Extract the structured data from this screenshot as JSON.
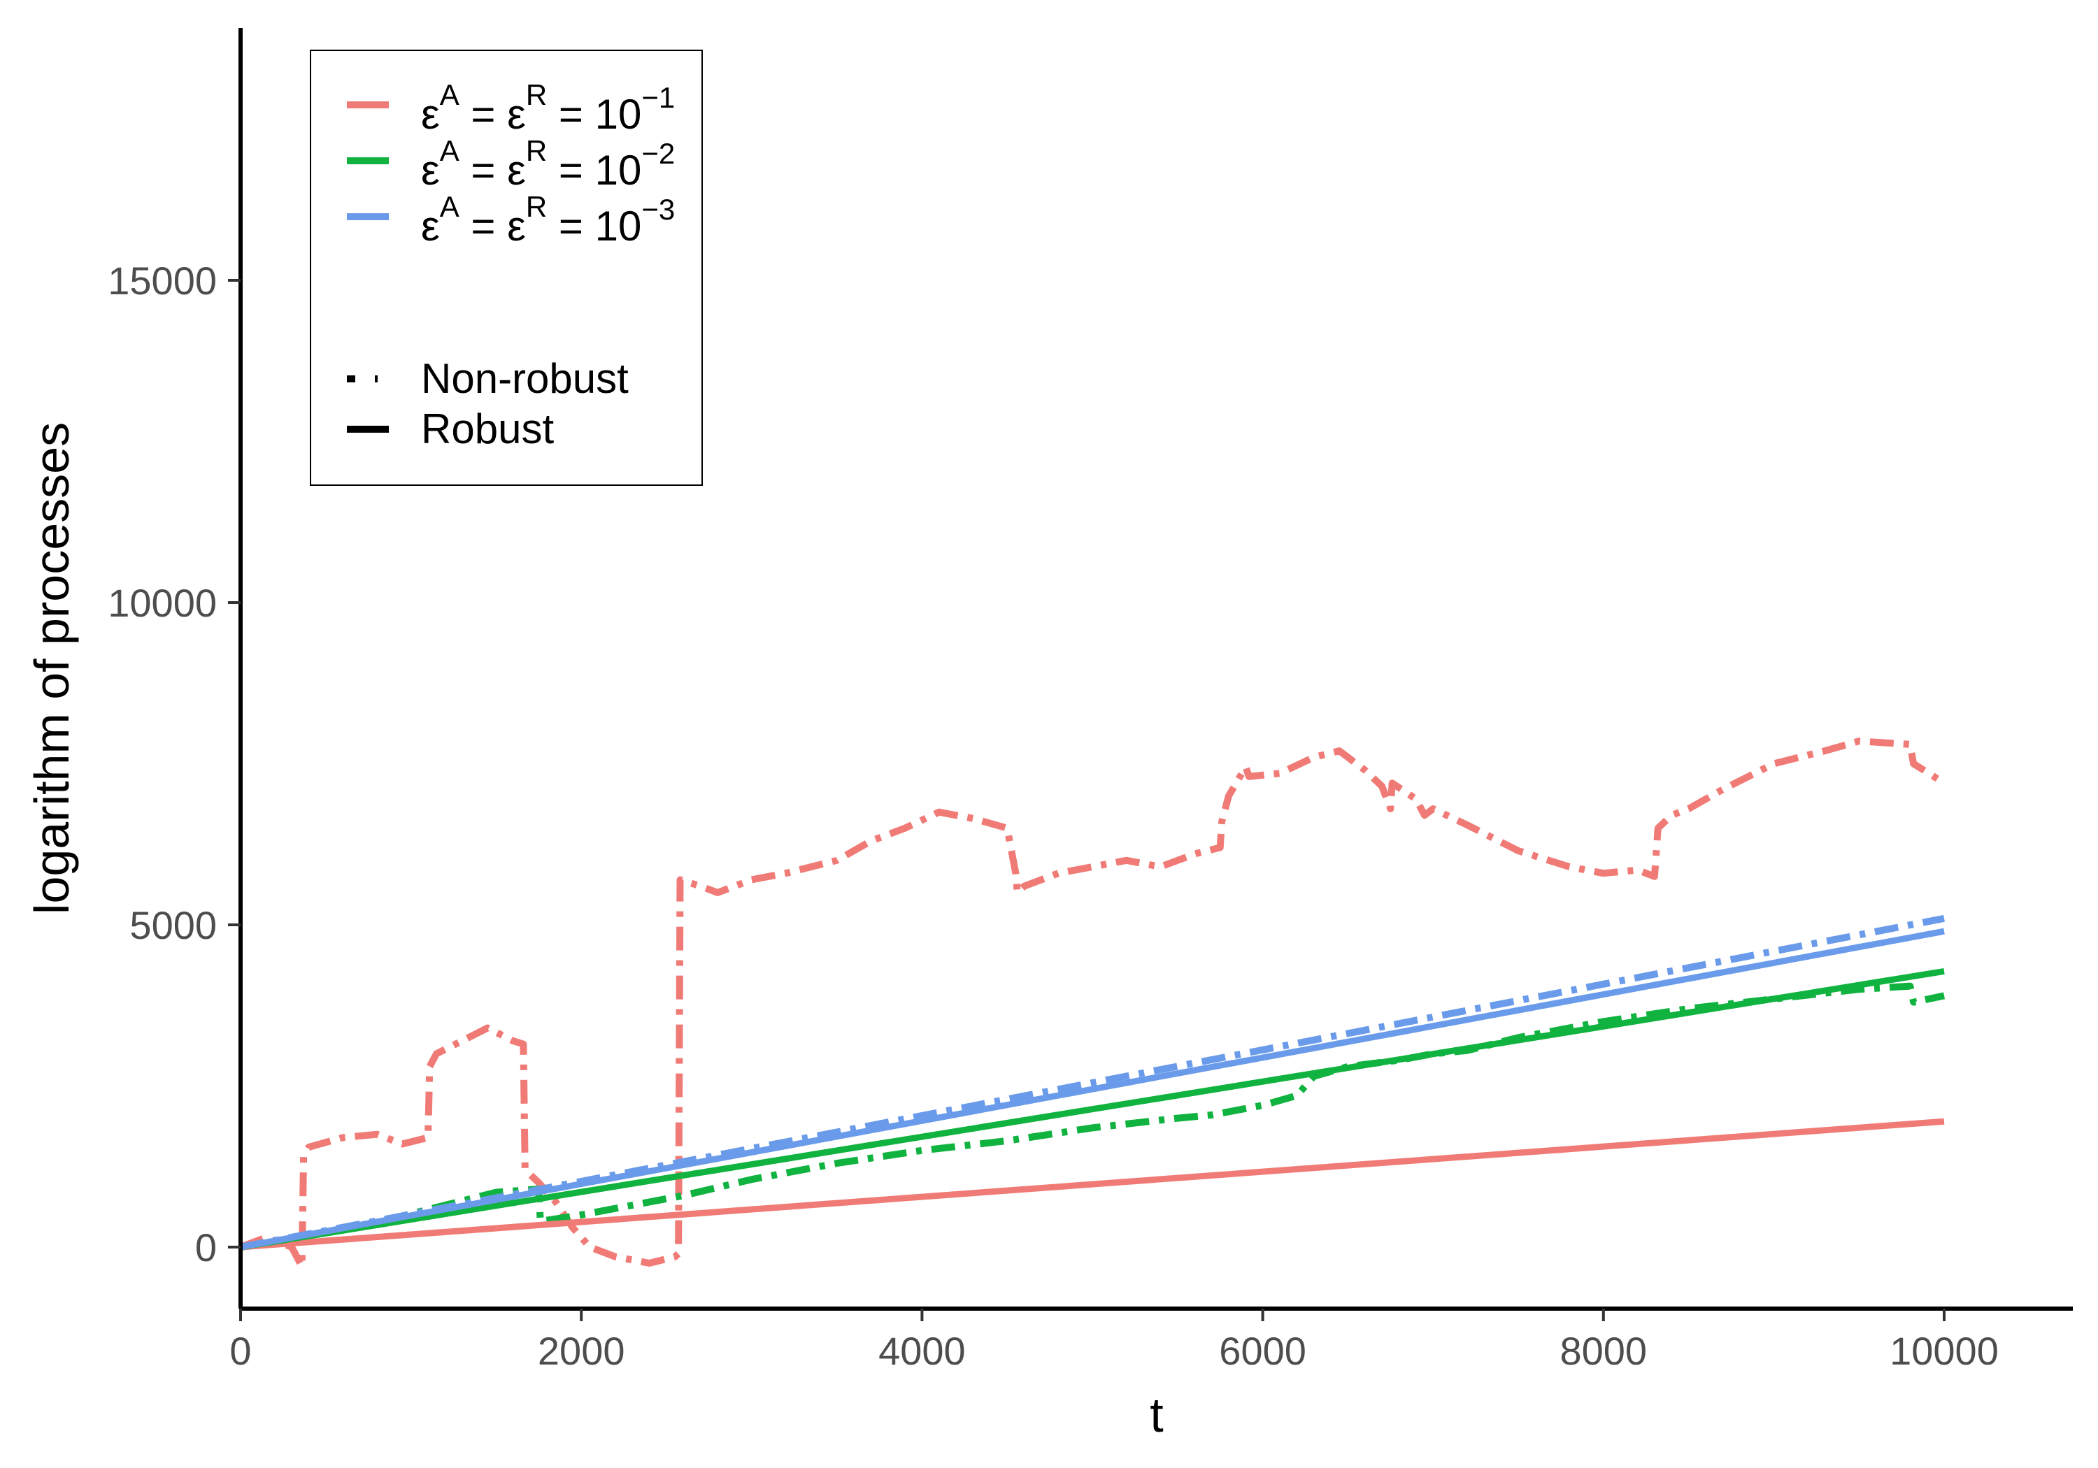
{
  "chart_data": {
    "type": "line",
    "title": "",
    "xlabel": "t",
    "ylabel": "logarithm of processes",
    "xlim": [
      0,
      10800
    ],
    "ylim": [
      -1000,
      19000
    ],
    "xticks": [
      0,
      2000,
      4000,
      6000,
      8000,
      10000
    ],
    "xtick_labels": [
      "0",
      "2000",
      "4000",
      "6000",
      "8000",
      "10000"
    ],
    "yticks": [
      0,
      5000,
      10000,
      15000
    ],
    "ytick_labels": [
      "0",
      "5000",
      "10000",
      "15000"
    ],
    "grid": false,
    "legend_position": "top-left",
    "legend": {
      "colour_entries": [
        {
          "base": "ε",
          "sup1": "A",
          "mid": " = ε",
          "sup2": "R",
          "tail": " = 10",
          "exp": "−1",
          "color": "#F07B76"
        },
        {
          "base": "ε",
          "sup1": "A",
          "mid": " = ε",
          "sup2": "R",
          "tail": " = 10",
          "exp": "−2",
          "color": "#10B33F"
        },
        {
          "base": "ε",
          "sup1": "A",
          "mid": " = ε",
          "sup2": "R",
          "tail": " = 10",
          "exp": "−3",
          "color": "#6A9BEB"
        }
      ],
      "linetype_entries": [
        {
          "label": "Non-robust",
          "linestyle": "dotdash"
        },
        {
          "label": "Robust",
          "linestyle": "solid"
        }
      ]
    },
    "series": [
      {
        "group": "ε=10^-1",
        "style": "Robust",
        "color": "#F07B76",
        "linestyle": "solid",
        "x": [
          0,
          10000
        ],
        "y": [
          0,
          1950
        ]
      },
      {
        "group": "ε=10^-2",
        "style": "Robust",
        "color": "#10B33F",
        "linestyle": "solid",
        "x": [
          0,
          10000
        ],
        "y": [
          0,
          4280
        ]
      },
      {
        "group": "ε=10^-3",
        "style": "Robust",
        "color": "#6A9BEB",
        "linestyle": "solid",
        "x": [
          0,
          10000
        ],
        "y": [
          0,
          4900
        ]
      },
      {
        "group": "ε=10^-1",
        "style": "Non-robust",
        "color": "#F07B76",
        "linestyle": "dotdash",
        "x": [
          0,
          150,
          300,
          360,
          370,
          400,
          600,
          800,
          950,
          1100,
          1110,
          1150,
          1300,
          1450,
          1600,
          1660,
          1670,
          1750,
          1850,
          1950,
          2050,
          2200,
          2400,
          2550,
          2570,
          2580,
          2700,
          2800,
          3000,
          3200,
          3500,
          3700,
          3900,
          4100,
          4300,
          4500,
          4550,
          4560,
          4600,
          4800,
          5000,
          5200,
          5400,
          5600,
          5750,
          5760,
          5800,
          5900,
          5920,
          6100,
          6300,
          6450,
          6600,
          6700,
          6750,
          6760,
          6900,
          6950,
          7000,
          7200,
          7500,
          7800,
          8000,
          8200,
          8300,
          8320,
          8400,
          8500,
          8700,
          9000,
          9300,
          9500,
          9800,
          9820,
          10000
        ],
        "y": [
          0,
          150,
          0,
          -300,
          1400,
          1550,
          1700,
          1750,
          1600,
          1700,
          2800,
          3000,
          3200,
          3400,
          3200,
          3150,
          1200,
          1000,
          700,
          300,
          0,
          -150,
          -250,
          -150,
          -100,
          5700,
          5600,
          5500,
          5700,
          5800,
          6000,
          6300,
          6500,
          6750,
          6650,
          6500,
          5800,
          5500,
          5600,
          5800,
          5900,
          6000,
          5900,
          6100,
          6200,
          6600,
          7000,
          7450,
          7300,
          7350,
          7600,
          7700,
          7400,
          7150,
          6800,
          7200,
          6950,
          6700,
          6800,
          6550,
          6150,
          5900,
          5800,
          5850,
          5750,
          6500,
          6700,
          6800,
          7100,
          7500,
          7700,
          7850,
          7800,
          7500,
          7200
        ]
      },
      {
        "group": "ε=10^-2",
        "style": "Non-robust",
        "color": "#10B33F",
        "linestyle": "dotdash",
        "x": [
          0,
          300,
          600,
          900,
          1200,
          1500,
          1750,
          1760,
          2000,
          2300,
          2600,
          3000,
          3500,
          4000,
          4500,
          5000,
          5500,
          5700,
          6000,
          6200,
          6300,
          6500,
          6800,
          7000,
          7200,
          7500,
          8000,
          8500,
          9000,
          9500,
          9800,
          9820,
          10000
        ],
        "y": [
          0,
          120,
          300,
          450,
          650,
          850,
          900,
          400,
          500,
          650,
          800,
          1050,
          1300,
          1500,
          1650,
          1850,
          2000,
          2050,
          2200,
          2350,
          2650,
          2800,
          2900,
          3000,
          3050,
          3250,
          3500,
          3700,
          3850,
          4000,
          4050,
          3800,
          3900
        ]
      },
      {
        "group": "ε=10^-3",
        "style": "Non-robust",
        "color": "#6A9BEB",
        "linestyle": "dotdash",
        "x": [
          0,
          10000
        ],
        "y": [
          0,
          5100
        ]
      }
    ]
  }
}
